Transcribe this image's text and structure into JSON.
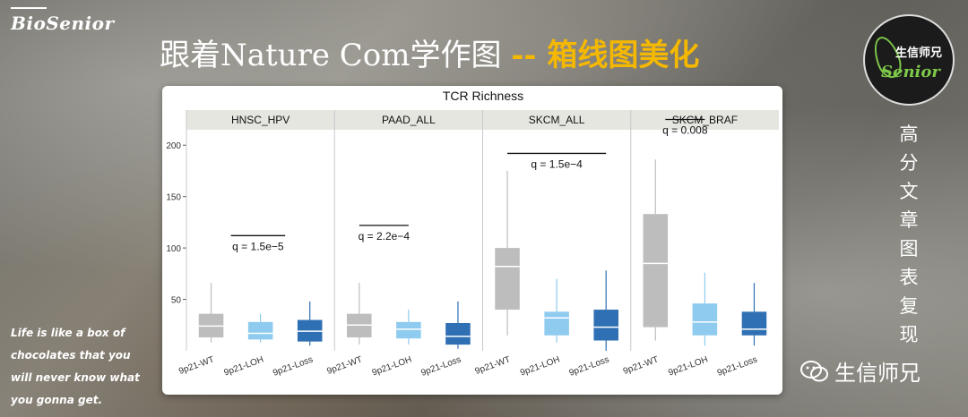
{
  "brand": {
    "logo_text": "BioSenior",
    "badge_top": "生信师兄",
    "badge_script": "Senior"
  },
  "headline": {
    "part1": "跟着Nature Com学作图 ",
    "part2": "-- 箱线图美化"
  },
  "side_text": "高分文章图表复现",
  "quote": "Life is like a box of chocolates that you will never know what you gonna get.",
  "wechat": {
    "label": "生信师兄"
  },
  "colors": {
    "wt": "#bdbdbd",
    "loh": "#8ecbef",
    "loss": "#2f6fb3",
    "strip": "#e6e6e1"
  },
  "chart_data": {
    "type": "boxplot",
    "title": "TCR Richness",
    "ylim": [
      0,
      215
    ],
    "yticks": [
      50,
      100,
      150,
      200
    ],
    "categories": [
      "9p21-WT",
      "9p21-LOH",
      "9p21-Loss"
    ],
    "facets": [
      {
        "name": "HNSC_HPV",
        "annotation": "q = 1.5e−5",
        "annotation_y": 112,
        "boxes": [
          {
            "min": 8,
            "q1": 13,
            "median": 24,
            "q3": 36,
            "max": 66
          },
          {
            "min": 8,
            "q1": 11,
            "median": 17,
            "q3": 28,
            "max": 36
          },
          {
            "min": 5,
            "q1": 9,
            "median": 19,
            "q3": 30,
            "max": 48
          }
        ]
      },
      {
        "name": "PAAD_ALL",
        "annotation": "q = 2.2e−4",
        "annotation_y": 122,
        "boxes": [
          {
            "min": 6,
            "q1": 13,
            "median": 25,
            "q3": 36,
            "max": 66
          },
          {
            "min": 6,
            "q1": 12,
            "median": 21,
            "q3": 28,
            "max": 40
          },
          {
            "min": 2,
            "q1": 6,
            "median": 14,
            "q3": 27,
            "max": 48
          }
        ]
      },
      {
        "name": "SKCM_ALL",
        "annotation": "q = 1.5e−4",
        "annotation_y": 192,
        "boxes": [
          {
            "min": 15,
            "q1": 40,
            "median": 82,
            "q3": 100,
            "max": 175
          },
          {
            "min": 8,
            "q1": 15,
            "median": 32,
            "q3": 38,
            "max": 70
          },
          {
            "min": 0,
            "q1": 10,
            "median": 23,
            "q3": 40,
            "max": 78
          }
        ]
      },
      {
        "name": "SKCM_BRAF",
        "annotation": "q = 0.008",
        "annotation_y": 225,
        "boxes": [
          {
            "min": 10,
            "q1": 23,
            "median": 85,
            "q3": 133,
            "max": 186
          },
          {
            "min": 5,
            "q1": 15,
            "median": 28,
            "q3": 46,
            "max": 76
          },
          {
            "min": 5,
            "q1": 15,
            "median": 21,
            "q3": 38,
            "max": 66
          }
        ]
      }
    ]
  }
}
